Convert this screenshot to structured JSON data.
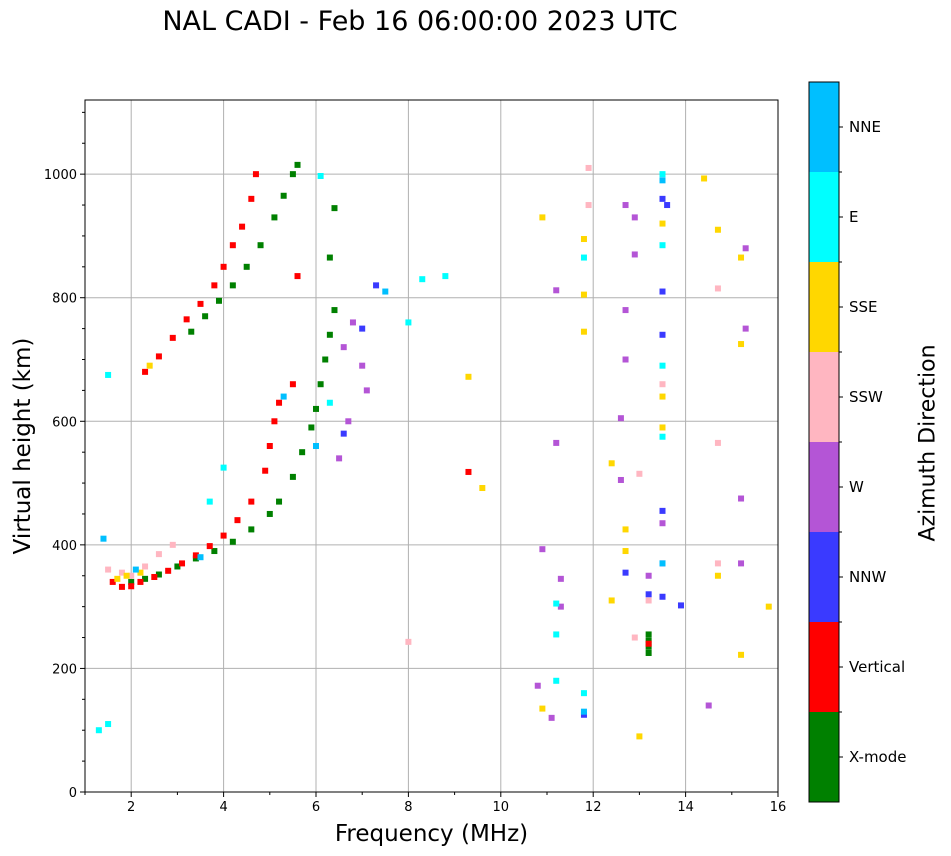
{
  "chart_data": {
    "type": "scatter",
    "title": "NAL CADI - Feb 16 06:00:00 2023 UTC",
    "xlabel": "Frequency (MHz)",
    "ylabel": "Virtual height (km)",
    "xlim": [
      1,
      16
    ],
    "ylim": [
      0,
      1120
    ],
    "xticks": [
      "2",
      "4",
      "6",
      "8",
      "10",
      "12",
      "14",
      "16"
    ],
    "yticks": [
      "0",
      "200",
      "400",
      "600",
      "800",
      "1000"
    ],
    "grid": true,
    "colorbar": {
      "label": "Azimuth Direction",
      "categories": [
        {
          "name": "X-mode",
          "color": "#008000"
        },
        {
          "name": "Vertical",
          "color": "#ff0000"
        },
        {
          "name": "NNW",
          "color": "#3a3aff"
        },
        {
          "name": "W",
          "color": "#b455d6"
        },
        {
          "name": "SSW",
          "color": "#ffb6c1"
        },
        {
          "name": "SSE",
          "color": "#ffd700"
        },
        {
          "name": "E",
          "color": "#00ffff"
        },
        {
          "name": "NNE",
          "color": "#00bfff"
        }
      ]
    },
    "series": [
      {
        "name": "X-mode",
        "points": [
          [
            2.0,
            340
          ],
          [
            2.3,
            345
          ],
          [
            2.6,
            352
          ],
          [
            3.0,
            365
          ],
          [
            3.4,
            378
          ],
          [
            3.8,
            390
          ],
          [
            4.2,
            405
          ],
          [
            4.6,
            425
          ],
          [
            5.0,
            450
          ],
          [
            5.2,
            470
          ],
          [
            5.5,
            510
          ],
          [
            5.7,
            550
          ],
          [
            5.9,
            590
          ],
          [
            6.0,
            620
          ],
          [
            6.1,
            660
          ],
          [
            6.2,
            700
          ],
          [
            6.3,
            740
          ],
          [
            6.4,
            780
          ],
          [
            3.3,
            745
          ],
          [
            3.6,
            770
          ],
          [
            3.9,
            795
          ],
          [
            4.2,
            820
          ],
          [
            4.5,
            850
          ],
          [
            4.8,
            885
          ],
          [
            5.1,
            930
          ],
          [
            5.3,
            965
          ],
          [
            5.5,
            1000
          ],
          [
            5.6,
            1015
          ],
          [
            6.4,
            945
          ],
          [
            6.3,
            865
          ],
          [
            13.2,
            225
          ],
          [
            13.2,
            235
          ],
          [
            13.2,
            245
          ],
          [
            13.2,
            255
          ]
        ]
      },
      {
        "name": "Vertical",
        "points": [
          [
            1.6,
            340
          ],
          [
            1.8,
            332
          ],
          [
            2.0,
            333
          ],
          [
            2.2,
            340
          ],
          [
            2.5,
            348
          ],
          [
            2.8,
            358
          ],
          [
            3.1,
            370
          ],
          [
            3.4,
            383
          ],
          [
            3.7,
            398
          ],
          [
            4.0,
            415
          ],
          [
            4.3,
            440
          ],
          [
            4.6,
            470
          ],
          [
            4.9,
            520
          ],
          [
            5.0,
            560
          ],
          [
            5.1,
            600
          ],
          [
            5.2,
            630
          ],
          [
            2.3,
            680
          ],
          [
            2.6,
            705
          ],
          [
            2.9,
            735
          ],
          [
            3.2,
            765
          ],
          [
            3.5,
            790
          ],
          [
            3.8,
            820
          ],
          [
            4.0,
            850
          ],
          [
            4.2,
            885
          ],
          [
            4.4,
            915
          ],
          [
            4.6,
            960
          ],
          [
            4.7,
            1000
          ],
          [
            5.6,
            835
          ],
          [
            5.5,
            660
          ],
          [
            9.3,
            518
          ],
          [
            13.2,
            240
          ]
        ]
      },
      {
        "name": "NNW",
        "points": [
          [
            6.6,
            580
          ],
          [
            7.0,
            750
          ],
          [
            7.3,
            820
          ],
          [
            11.8,
            125
          ],
          [
            12.7,
            355
          ],
          [
            13.2,
            320
          ],
          [
            13.5,
            316
          ],
          [
            13.9,
            302
          ],
          [
            13.5,
            455
          ],
          [
            13.5,
            740
          ],
          [
            13.5,
            810
          ],
          [
            13.5,
            960
          ],
          [
            13.6,
            950
          ]
        ]
      },
      {
        "name": "W",
        "points": [
          [
            6.5,
            540
          ],
          [
            6.7,
            600
          ],
          [
            6.6,
            720
          ],
          [
            6.8,
            760
          ],
          [
            7.0,
            690
          ],
          [
            7.1,
            650
          ],
          [
            10.8,
            172
          ],
          [
            10.9,
            393
          ],
          [
            11.1,
            120
          ],
          [
            11.2,
            565
          ],
          [
            11.3,
            300
          ],
          [
            11.3,
            345
          ],
          [
            11.2,
            812
          ],
          [
            12.6,
            505
          ],
          [
            12.6,
            605
          ],
          [
            12.7,
            700
          ],
          [
            12.7,
            780
          ],
          [
            12.7,
            950
          ],
          [
            12.9,
            930
          ],
          [
            12.9,
            870
          ],
          [
            13.2,
            350
          ],
          [
            13.5,
            370
          ],
          [
            13.5,
            435
          ],
          [
            14.5,
            140
          ],
          [
            15.2,
            370
          ],
          [
            15.2,
            475
          ],
          [
            15.3,
            750
          ],
          [
            15.3,
            880
          ]
        ]
      },
      {
        "name": "SSW",
        "points": [
          [
            1.5,
            360
          ],
          [
            1.8,
            355
          ],
          [
            2.0,
            350
          ],
          [
            2.3,
            365
          ],
          [
            2.6,
            385
          ],
          [
            2.9,
            400
          ],
          [
            12.9,
            250
          ],
          [
            13.0,
            515
          ],
          [
            13.2,
            310
          ],
          [
            13.5,
            660
          ],
          [
            14.7,
            565
          ],
          [
            14.7,
            815
          ],
          [
            14.7,
            370
          ],
          [
            8.0,
            243
          ],
          [
            11.9,
            950
          ],
          [
            11.9,
            1010
          ]
        ]
      },
      {
        "name": "SSE",
        "points": [
          [
            1.7,
            345
          ],
          [
            1.9,
            350
          ],
          [
            2.2,
            355
          ],
          [
            2.4,
            690
          ],
          [
            9.3,
            672
          ],
          [
            9.6,
            492
          ],
          [
            10.9,
            930
          ],
          [
            10.9,
            135
          ],
          [
            12.4,
            310
          ],
          [
            12.4,
            532
          ],
          [
            12.7,
            390
          ],
          [
            12.7,
            425
          ],
          [
            13.0,
            90
          ],
          [
            13.5,
            590
          ],
          [
            13.5,
            640
          ],
          [
            13.5,
            920
          ],
          [
            14.4,
            993
          ],
          [
            14.7,
            350
          ],
          [
            14.7,
            910
          ],
          [
            15.2,
            222
          ],
          [
            15.2,
            725
          ],
          [
            15.2,
            865
          ],
          [
            15.8,
            300
          ],
          [
            11.8,
            745
          ],
          [
            11.8,
            805
          ],
          [
            11.8,
            895
          ]
        ]
      },
      {
        "name": "E",
        "points": [
          [
            1.3,
            100
          ],
          [
            1.5,
            110
          ],
          [
            1.5,
            675
          ],
          [
            3.7,
            470
          ],
          [
            4.0,
            525
          ],
          [
            6.1,
            997
          ],
          [
            6.3,
            630
          ],
          [
            8.0,
            760
          ],
          [
            8.3,
            830
          ],
          [
            8.8,
            835
          ],
          [
            11.2,
            180
          ],
          [
            11.2,
            255
          ],
          [
            11.2,
            305
          ],
          [
            11.8,
            160
          ],
          [
            11.8,
            865
          ],
          [
            13.5,
            575
          ],
          [
            13.5,
            690
          ],
          [
            13.5,
            885
          ],
          [
            13.5,
            1000
          ]
        ]
      },
      {
        "name": "NNE",
        "points": [
          [
            1.4,
            410
          ],
          [
            2.1,
            360
          ],
          [
            3.5,
            380
          ],
          [
            5.3,
            640
          ],
          [
            6.0,
            560
          ],
          [
            7.5,
            810
          ],
          [
            11.8,
            130
          ],
          [
            13.5,
            370
          ],
          [
            13.5,
            990
          ]
        ]
      }
    ]
  }
}
